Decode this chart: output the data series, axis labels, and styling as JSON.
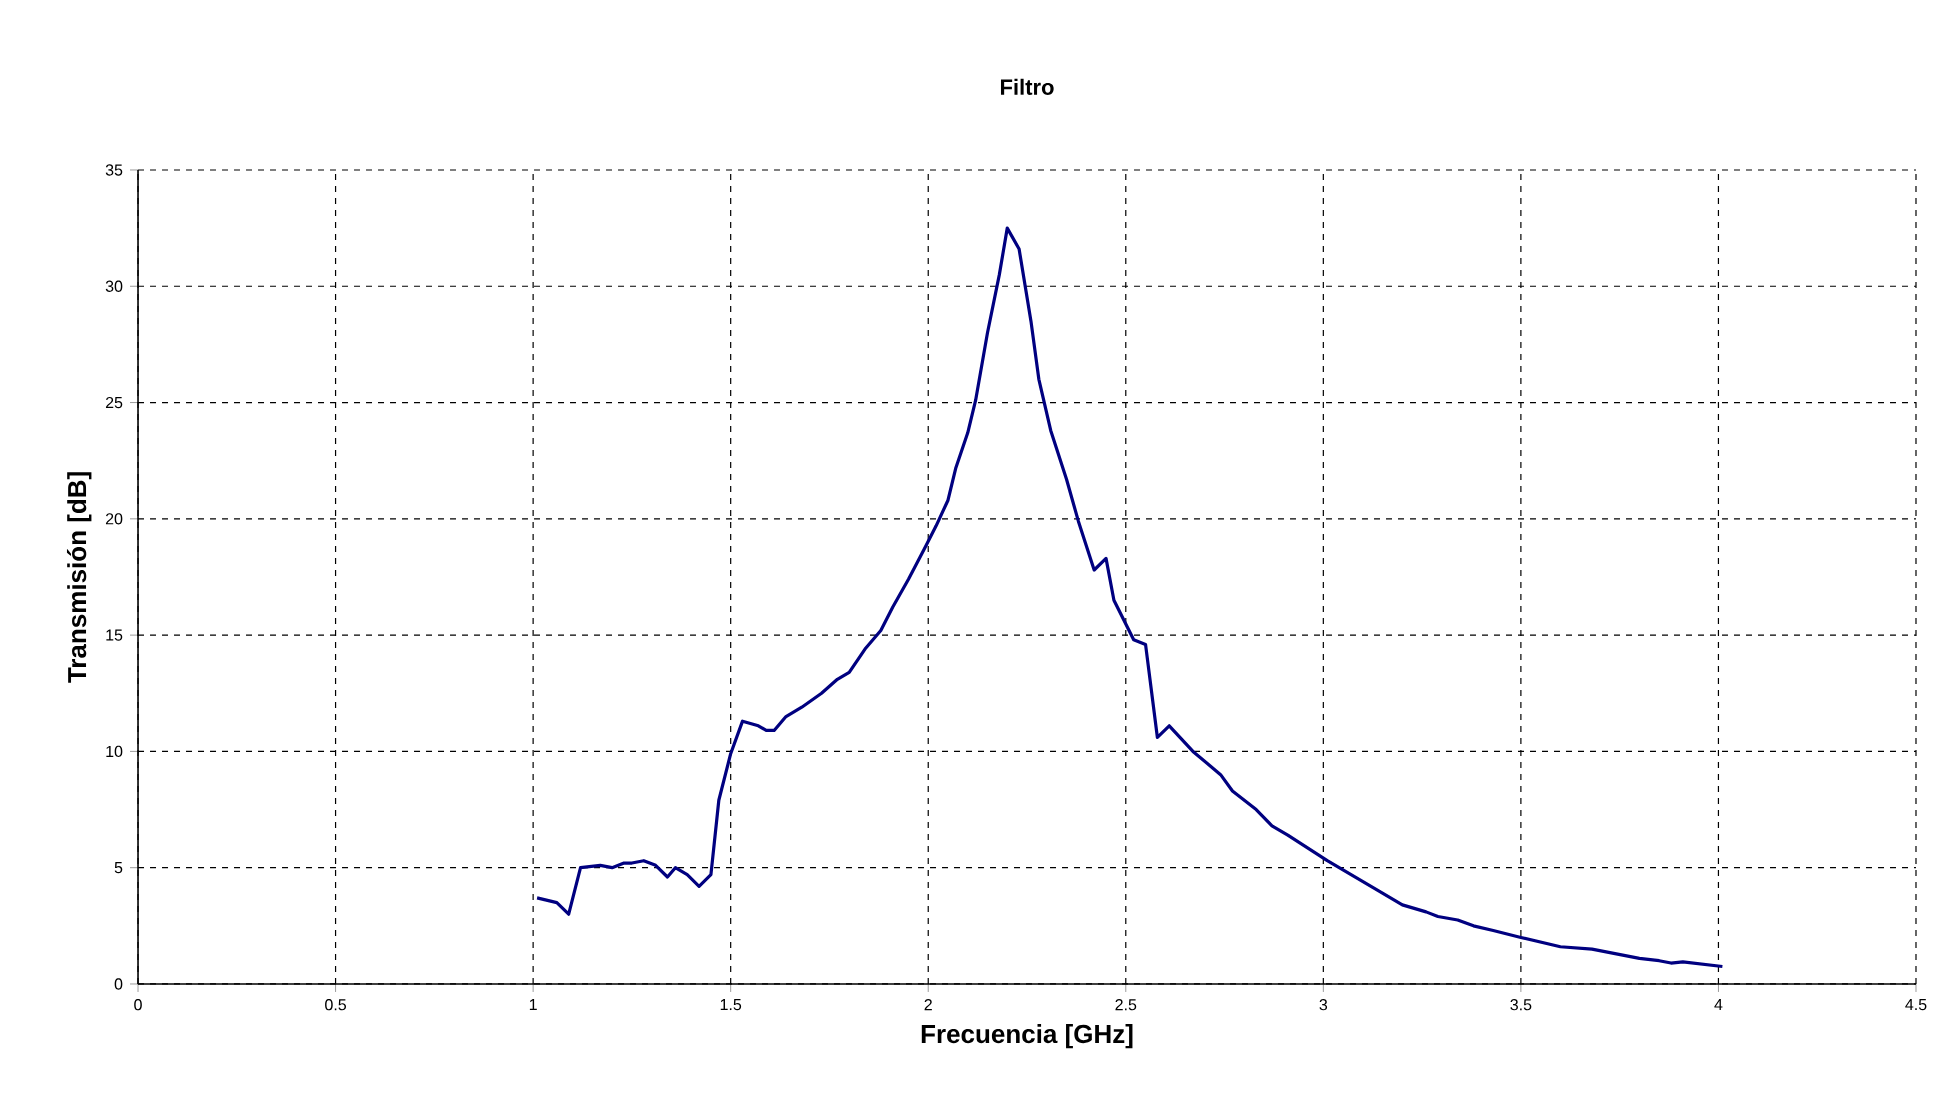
{
  "chart_data": {
    "type": "line",
    "title": "Filtro",
    "xlabel": "Frecuencia [GHz]",
    "ylabel": "Transmisión [dB]",
    "xlim": [
      0,
      4.5
    ],
    "ylim": [
      0,
      35
    ],
    "xticks": [
      0,
      0.5,
      1,
      1.5,
      2,
      2.5,
      3,
      3.5,
      4,
      4.5
    ],
    "yticks": [
      0,
      5,
      10,
      15,
      20,
      25,
      30,
      35
    ],
    "grid": true,
    "line_style": "solid",
    "marker": "none",
    "series": [
      {
        "color": "#000080",
        "x": [
          1.01,
          1.06,
          1.09,
          1.12,
          1.17,
          1.2,
          1.23,
          1.25,
          1.28,
          1.31,
          1.34,
          1.36,
          1.39,
          1.42,
          1.45,
          1.47,
          1.5,
          1.53,
          1.57,
          1.59,
          1.61,
          1.64,
          1.68,
          1.73,
          1.77,
          1.8,
          1.84,
          1.88,
          1.91,
          1.95,
          1.99,
          2.02,
          2.05,
          2.07,
          2.1,
          2.12,
          2.15,
          2.18,
          2.2,
          2.23,
          2.26,
          2.28,
          2.31,
          2.35,
          2.38,
          2.42,
          2.45,
          2.47,
          2.52,
          2.55,
          2.58,
          2.61,
          2.67,
          2.74,
          2.77,
          2.83,
          2.87,
          2.91,
          3.01,
          3.14,
          3.2,
          3.26,
          3.29,
          3.34,
          3.38,
          3.43,
          3.5,
          3.6,
          3.68,
          3.8,
          3.85,
          3.88,
          3.91,
          4.01
        ],
        "values": [
          3.7,
          3.5,
          3.0,
          5.0,
          5.1,
          5.0,
          5.2,
          5.2,
          5.3,
          5.1,
          4.6,
          5.0,
          4.7,
          4.2,
          4.7,
          7.9,
          9.9,
          11.3,
          11.1,
          10.9,
          10.9,
          11.5,
          11.9,
          12.5,
          13.1,
          13.4,
          14.4,
          15.2,
          16.2,
          17.4,
          18.7,
          19.7,
          20.8,
          22.2,
          23.7,
          25.1,
          28.0,
          30.5,
          32.5,
          31.6,
          28.5,
          26.0,
          23.8,
          21.7,
          19.9,
          17.8,
          18.3,
          16.5,
          14.8,
          14.6,
          10.6,
          11.1,
          10.0,
          9.0,
          8.3,
          7.5,
          6.8,
          6.4,
          5.3,
          4.0,
          3.4,
          3.1,
          2.9,
          2.75,
          2.5,
          2.3,
          2.0,
          1.6,
          1.5,
          1.1,
          1.0,
          0.9,
          0.95,
          0.75
        ]
      }
    ]
  }
}
